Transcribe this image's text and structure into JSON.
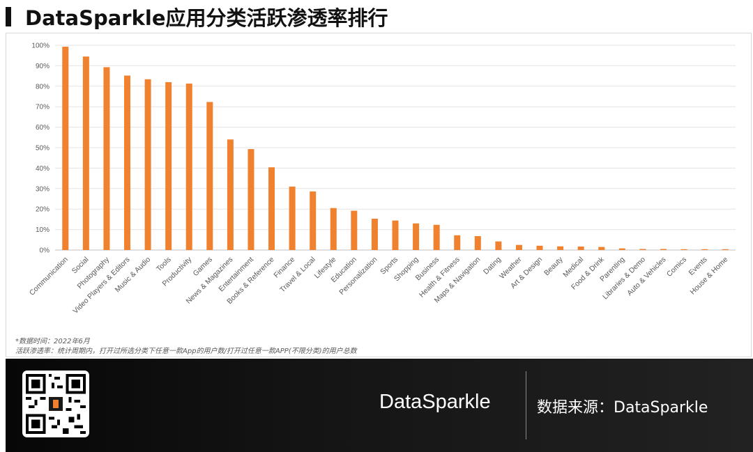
{
  "header": {
    "title": "DataSparkle应用分类活跃渗透率排行"
  },
  "chart_data": {
    "type": "bar",
    "categories": [
      "Communication",
      "Social",
      "Photography",
      "Video Players & Editors",
      "Music & Audio",
      "Tools",
      "Productivity",
      "Games",
      "News & Magazines",
      "Entertainment",
      "Books & Reference",
      "Finance",
      "Travel & Local",
      "Lifestyle",
      "Education",
      "Personalization",
      "Sports",
      "Shopping",
      "Business",
      "Health & Fitness",
      "Maps & Navigation",
      "Dating",
      "Weather",
      "Art & Design",
      "Beauty",
      "Medical",
      "Food & Drink",
      "Parenting",
      "Libraries & Demo",
      "Auto & Vehicles",
      "Comics",
      "Events",
      "House & Home"
    ],
    "values": [
      99.3,
      94.5,
      89.3,
      85.2,
      83.4,
      82.0,
      81.3,
      72.3,
      54.0,
      49.3,
      40.4,
      31.0,
      28.6,
      20.5,
      19.2,
      15.3,
      14.4,
      13.0,
      12.3,
      7.2,
      6.8,
      4.2,
      2.5,
      2.1,
      1.8,
      1.7,
      1.5,
      0.8,
      0.5,
      0.5,
      0.4,
      0.4,
      0.4
    ],
    "yticks": [
      "0%",
      "10%",
      "20%",
      "30%",
      "40%",
      "50%",
      "60%",
      "70%",
      "80%",
      "90%",
      "100%"
    ],
    "ylim": [
      0,
      100
    ],
    "grid": true,
    "bar_color": "#f0812f",
    "xlabel": "",
    "ylabel": ""
  },
  "notes": {
    "line1": "*数据时间：2022年6月",
    "line2": "活跃渗透率：统计周期内，打开过所选分类下任意一款App的用户数/打开过任意一款APP(不限分类)的用户总数"
  },
  "footer": {
    "qr_icon": "qr-code",
    "brand": "DataSparkle",
    "source": "数据来源：DataSparkle"
  }
}
